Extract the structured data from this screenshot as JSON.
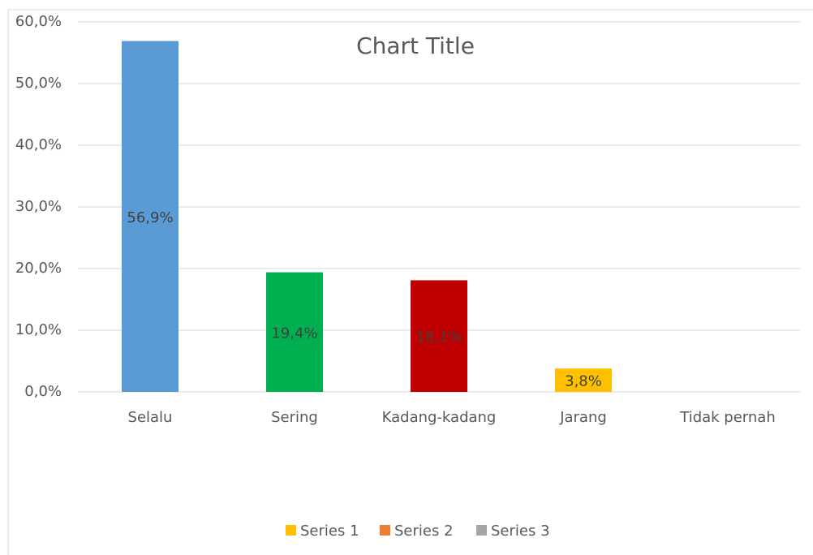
{
  "chart_data": {
    "type": "bar",
    "title": "Chart Title",
    "categories": [
      "Selalu",
      "Sering",
      "Kadang-kadang",
      "Jarang",
      "Tidak pernah"
    ],
    "values": [
      56.9,
      19.4,
      18.1,
      3.8,
      null
    ],
    "value_labels": [
      "56,9%",
      "19,4%",
      "18,1%",
      "3,8%",
      null
    ],
    "colors": [
      "#5b9bd5",
      "#00b050",
      "#c00000",
      "#ffc000",
      null
    ],
    "ylim": [
      0,
      60
    ],
    "yticks": [
      {
        "value": 0,
        "label": "0,0%"
      },
      {
        "value": 10,
        "label": "10,0%"
      },
      {
        "value": 20,
        "label": "20,0%"
      },
      {
        "value": 30,
        "label": "30,0%"
      },
      {
        "value": 40,
        "label": "40,0%"
      },
      {
        "value": 50,
        "label": "50,0%"
      },
      {
        "value": 60,
        "label": "60,0%"
      }
    ],
    "grid": true,
    "legend_position": "bottom",
    "legend": [
      {
        "name": "Series 1",
        "color": "#ffc000"
      },
      {
        "name": "Series 2",
        "color": "#ed7d31"
      },
      {
        "name": "Series 3",
        "color": "#a5a5a5"
      }
    ]
  }
}
